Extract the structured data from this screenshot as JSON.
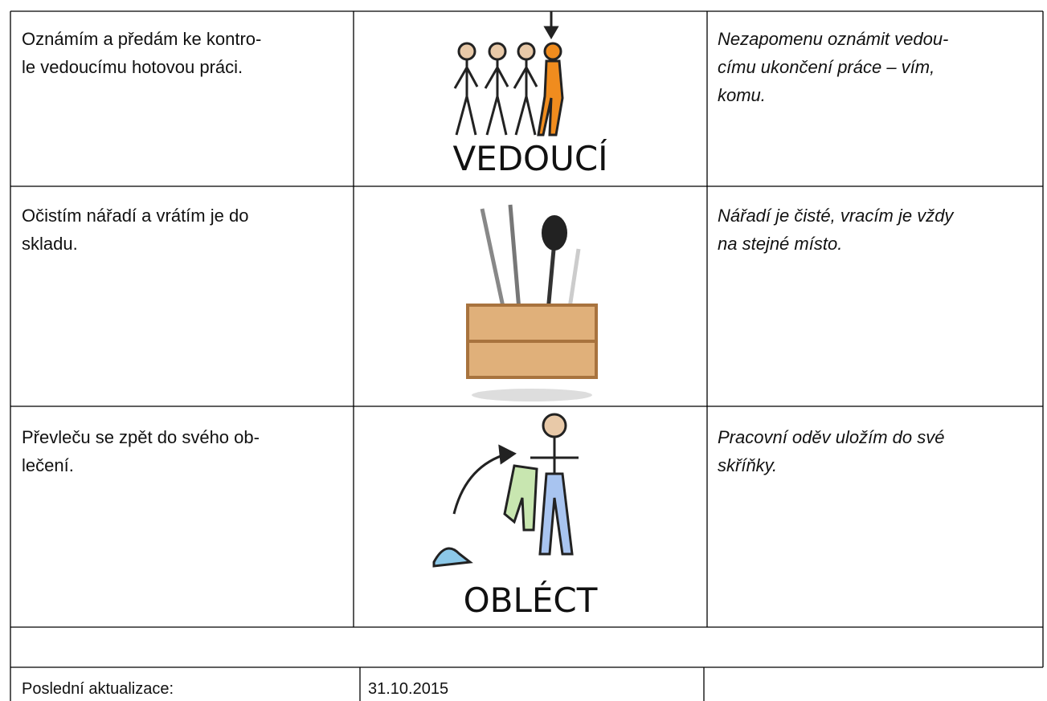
{
  "rows": [
    {
      "action": [
        "Oznámím a předám ke kontro-",
        "le vedoucímu hotovou práci."
      ],
      "picture_label": "VEDOUCÍ",
      "note": [
        "Nezapomenu oznámit vedou-",
        "címu ukončení práce – vím,",
        "komu."
      ]
    },
    {
      "action": [
        "Očistím nářadí a vrátím je do",
        "skladu."
      ],
      "note": [
        "Nářadí je čisté, vracím je vždy",
        "na stejné místo."
      ]
    },
    {
      "action": [
        "Převleču se zpět do svého ob-",
        "lečení."
      ],
      "picture_label": "OBLÉCT",
      "note": [
        "Pracovní oděv uložím do své",
        "skříňky."
      ]
    }
  ],
  "footer": {
    "label": "Poslední aktualizace:",
    "date": "31.10.2015"
  }
}
